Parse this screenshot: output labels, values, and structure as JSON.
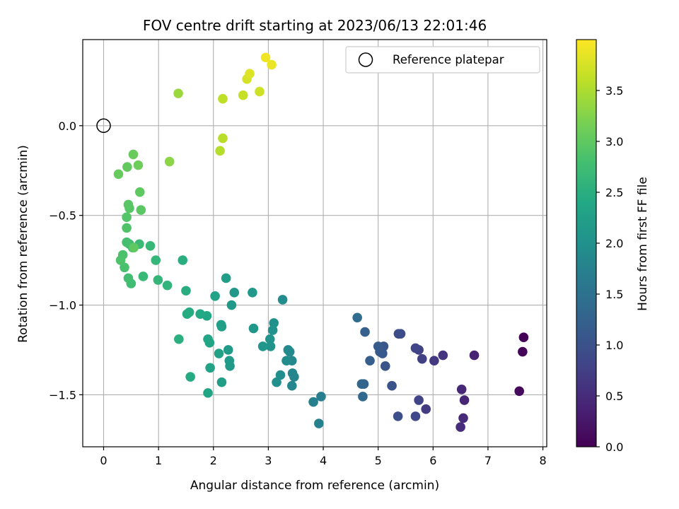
{
  "chart_data": {
    "type": "scatter",
    "title": "FOV centre drift starting at 2023/06/13 22:01:46",
    "xlabel": "Angular distance from reference (arcmin)",
    "ylabel": "Rotation from reference (arcmin)",
    "xlim": [
      -0.38,
      8.07
    ],
    "ylim": [
      -1.79,
      0.48
    ],
    "xticks": [
      "0",
      "1",
      "2",
      "3",
      "4",
      "5",
      "6",
      "7",
      "8"
    ],
    "yticks": [
      "0.0",
      "−0.5",
      "−1.0",
      "−1.5"
    ],
    "grid": true,
    "legend": {
      "placement": "top-right",
      "entries": [
        "Reference platepar"
      ]
    },
    "reference_point": {
      "x": 0.0,
      "y": 0.0,
      "marker": "open-circle"
    },
    "colorbar": {
      "label": "Hours from first FF file",
      "colormap": "viridis",
      "range": [
        0.0,
        4.0
      ],
      "ticks": [
        "0.0",
        "0.5",
        "1.0",
        "1.5",
        "2.0",
        "2.5",
        "3.0",
        "3.5"
      ]
    },
    "series": [
      {
        "points": [
          [
            7.65,
            -1.18,
            0.03
          ],
          [
            7.63,
            -1.26,
            0.06
          ],
          [
            7.57,
            -1.48,
            0.1
          ],
          [
            6.75,
            -1.28,
            0.4
          ],
          [
            6.57,
            -1.53,
            0.42
          ],
          [
            6.52,
            -1.47,
            0.45
          ],
          [
            6.55,
            -1.63,
            0.48
          ],
          [
            6.5,
            -1.68,
            0.5
          ],
          [
            6.18,
            -1.28,
            0.6
          ],
          [
            6.02,
            -1.31,
            0.65
          ],
          [
            5.87,
            -1.58,
            0.7
          ],
          [
            5.8,
            -1.3,
            0.75
          ],
          [
            5.74,
            -1.25,
            0.78
          ],
          [
            5.74,
            -1.53,
            0.8
          ],
          [
            5.68,
            -1.24,
            0.83
          ],
          [
            5.68,
            -1.62,
            0.86
          ],
          [
            5.41,
            -1.16,
            0.9
          ],
          [
            5.37,
            -1.16,
            0.93
          ],
          [
            5.36,
            -1.62,
            0.96
          ],
          [
            5.25,
            -1.45,
            1.0
          ],
          [
            5.13,
            -1.34,
            1.03
          ],
          [
            5.1,
            -1.23,
            1.06
          ],
          [
            5.08,
            -1.27,
            1.09
          ],
          [
            5.03,
            -1.26,
            1.12
          ],
          [
            5.0,
            -1.23,
            1.15
          ],
          [
            4.85,
            -1.31,
            1.2
          ],
          [
            4.76,
            -1.15,
            1.25
          ],
          [
            4.74,
            -1.44,
            1.28
          ],
          [
            4.7,
            -1.44,
            1.31
          ],
          [
            4.72,
            -1.51,
            1.35
          ],
          [
            4.62,
            -1.07,
            1.4
          ],
          [
            3.96,
            -1.51,
            1.7
          ],
          [
            3.82,
            -1.54,
            1.72
          ],
          [
            3.92,
            -1.66,
            1.75
          ],
          [
            3.47,
            -1.4,
            1.8
          ],
          [
            3.44,
            -1.38,
            1.82
          ],
          [
            3.43,
            -1.45,
            1.84
          ],
          [
            3.43,
            -1.31,
            1.86
          ],
          [
            3.39,
            -1.26,
            1.88
          ],
          [
            3.36,
            -1.25,
            1.9
          ],
          [
            3.33,
            -1.31,
            1.92
          ],
          [
            3.26,
            -0.97,
            1.94
          ],
          [
            3.22,
            -1.39,
            1.96
          ],
          [
            3.15,
            -1.43,
            1.98
          ],
          [
            3.1,
            -1.1,
            2.0
          ],
          [
            3.08,
            -1.14,
            2.02
          ],
          [
            3.04,
            -1.23,
            2.04
          ],
          [
            3.03,
            -1.19,
            2.06
          ],
          [
            2.9,
            -1.23,
            2.08
          ],
          [
            2.73,
            -1.13,
            2.1
          ],
          [
            2.71,
            -0.93,
            2.12
          ],
          [
            2.38,
            -0.93,
            2.13
          ],
          [
            2.33,
            -1.0,
            2.14
          ],
          [
            2.3,
            -1.34,
            2.15
          ],
          [
            2.29,
            -1.31,
            2.16
          ],
          [
            2.27,
            -1.25,
            2.18
          ],
          [
            2.23,
            -0.85,
            2.2
          ],
          [
            2.15,
            -1.43,
            2.22
          ],
          [
            2.15,
            -1.12,
            2.24
          ],
          [
            2.14,
            -1.11,
            2.25
          ],
          [
            2.1,
            -1.27,
            2.27
          ],
          [
            2.03,
            -0.95,
            2.29
          ],
          [
            1.94,
            -1.35,
            2.31
          ],
          [
            1.93,
            -1.21,
            2.33
          ],
          [
            1.9,
            -1.49,
            2.35
          ],
          [
            1.9,
            -1.19,
            2.37
          ],
          [
            1.88,
            -1.06,
            2.39
          ],
          [
            1.76,
            -1.05,
            2.41
          ],
          [
            1.58,
            -1.4,
            2.43
          ],
          [
            1.56,
            -1.04,
            2.45
          ],
          [
            1.52,
            -1.05,
            2.46
          ],
          [
            1.5,
            -0.92,
            2.48
          ],
          [
            1.44,
            -0.75,
            2.5
          ],
          [
            1.37,
            -1.19,
            2.52
          ],
          [
            1.16,
            -0.89,
            2.6
          ],
          [
            0.99,
            -0.86,
            2.62
          ],
          [
            0.95,
            -0.75,
            2.64
          ],
          [
            0.85,
            -0.67,
            2.66
          ],
          [
            0.72,
            -0.84,
            2.68
          ],
          [
            0.65,
            -0.66,
            2.7
          ],
          [
            0.53,
            -0.68,
            2.73
          ],
          [
            0.5,
            -0.88,
            2.75
          ],
          [
            0.47,
            -0.66,
            2.77
          ],
          [
            0.45,
            -0.85,
            2.79
          ],
          [
            0.42,
            -0.65,
            2.81
          ],
          [
            0.38,
            -0.79,
            2.83
          ],
          [
            0.35,
            -0.72,
            2.85
          ],
          [
            0.31,
            -0.75,
            2.87
          ],
          [
            0.42,
            -0.57,
            2.89
          ],
          [
            0.42,
            -0.51,
            2.91
          ],
          [
            0.47,
            -0.46,
            2.93
          ],
          [
            0.45,
            -0.44,
            2.95
          ],
          [
            0.68,
            -0.47,
            2.97
          ],
          [
            0.66,
            -0.37,
            2.99
          ],
          [
            0.55,
            -0.68,
            3.0
          ],
          [
            0.43,
            -0.23,
            3.02
          ],
          [
            0.27,
            -0.27,
            3.05
          ],
          [
            0.54,
            -0.16,
            3.07
          ],
          [
            0.63,
            -0.22,
            3.1
          ],
          [
            1.2,
            -0.2,
            3.3
          ],
          [
            1.36,
            0.18,
            3.4
          ],
          [
            2.12,
            -0.14,
            3.55
          ],
          [
            2.17,
            -0.07,
            3.58
          ],
          [
            2.17,
            0.15,
            3.6
          ],
          [
            2.54,
            0.17,
            3.65
          ],
          [
            2.84,
            0.19,
            3.7
          ],
          [
            2.61,
            0.26,
            3.75
          ],
          [
            2.66,
            0.29,
            3.8
          ],
          [
            3.06,
            0.34,
            3.88
          ],
          [
            2.95,
            0.38,
            3.92
          ]
        ]
      }
    ]
  }
}
